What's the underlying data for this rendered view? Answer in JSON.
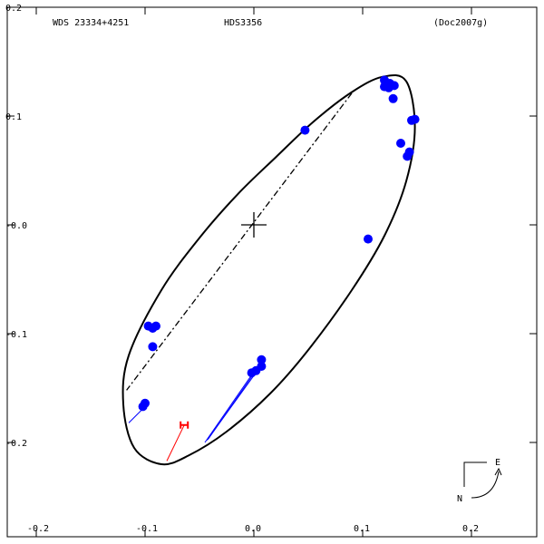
{
  "chart_data": {
    "type": "scatter",
    "header": {
      "left": "WDS 23334+4251",
      "center": "HDS3356",
      "right": "(Doc2007g)"
    },
    "xlim": [
      -0.2,
      0.2
    ],
    "ylim": [
      -0.2,
      0.2
    ],
    "x_ticks": [
      {
        "value": -0.2,
        "label": "-0.2"
      },
      {
        "value": -0.1,
        "label": "-0.1"
      },
      {
        "value": 0.0,
        "label": "0.0"
      },
      {
        "value": 0.1,
        "label": "0.1"
      },
      {
        "value": 0.2,
        "label": "0.2"
      }
    ],
    "y_ticks": [
      {
        "value": 0.2,
        "label": "0.2"
      },
      {
        "value": 0.1,
        "label": "0.1"
      },
      {
        "value": 0.0,
        "label": "-0.0"
      },
      {
        "value": -0.1,
        "label": "-0.1"
      },
      {
        "value": -0.2,
        "label": "-0.2"
      }
    ],
    "colors": {
      "orbit": "#000000",
      "observations": "#0000ff",
      "residuals": "#0000ff",
      "highlight": "#ff0000",
      "frame": "#000000"
    },
    "orbit_polygon": [
      [
        0.14,
        0.132
      ],
      [
        0.118,
        0.136
      ],
      [
        0.09,
        0.122
      ],
      [
        0.055,
        0.095
      ],
      [
        0.02,
        0.062
      ],
      [
        -0.015,
        0.028
      ],
      [
        -0.05,
        -0.012
      ],
      [
        -0.085,
        -0.06
      ],
      [
        -0.115,
        -0.12
      ],
      [
        -0.12,
        -0.165
      ],
      [
        -0.11,
        -0.205
      ],
      [
        -0.085,
        -0.22
      ],
      [
        -0.06,
        -0.212
      ],
      [
        -0.025,
        -0.19
      ],
      [
        0.015,
        -0.155
      ],
      [
        0.05,
        -0.115
      ],
      [
        0.09,
        -0.06
      ],
      [
        0.12,
        -0.01
      ],
      [
        0.14,
        0.04
      ],
      [
        0.148,
        0.09
      ]
    ],
    "line_of_nodes": [
      [
        0.09,
        0.121
      ],
      [
        -0.117,
        -0.152
      ]
    ],
    "primary_star": [
      0.0,
      0.0
    ],
    "observations": [
      {
        "x": 0.12,
        "y": 0.133
      },
      {
        "x": 0.125,
        "y": 0.13
      },
      {
        "x": 0.129,
        "y": 0.128
      },
      {
        "x": 0.12,
        "y": 0.127
      },
      {
        "x": 0.124,
        "y": 0.126
      },
      {
        "x": 0.128,
        "y": 0.116
      },
      {
        "x": 0.148,
        "y": 0.097
      },
      {
        "x": 0.145,
        "y": 0.096
      },
      {
        "x": 0.135,
        "y": 0.075
      },
      {
        "x": 0.143,
        "y": 0.067
      },
      {
        "x": 0.141,
        "y": 0.063
      },
      {
        "x": 0.047,
        "y": 0.087
      },
      {
        "x": 0.105,
        "y": -0.013
      },
      {
        "x": -0.093,
        "y": -0.095
      },
      {
        "x": -0.097,
        "y": -0.093
      },
      {
        "x": -0.09,
        "y": -0.093
      },
      {
        "x": -0.093,
        "y": -0.112
      },
      {
        "x": -0.1,
        "y": -0.164
      },
      {
        "x": -0.102,
        "y": -0.167
      },
      {
        "x": 0.007,
        "y": -0.124
      },
      {
        "x": 0.007,
        "y": -0.13
      },
      {
        "x": 0.002,
        "y": -0.134
      },
      {
        "x": -0.002,
        "y": -0.136
      }
    ],
    "residuals": [
      [
        [
          -0.101,
          -0.168
        ],
        [
          -0.115,
          -0.182
        ]
      ],
      [
        [
          0.0,
          -0.135
        ],
        [
          -0.045,
          -0.2
        ]
      ],
      [
        [
          0.004,
          -0.133
        ],
        [
          -0.043,
          -0.198
        ]
      ],
      [
        [
          0.006,
          -0.128
        ],
        [
          -0.042,
          -0.197
        ]
      ]
    ],
    "highlighted_point": {
      "x": -0.064,
      "y": -0.184,
      "orbit_x": -0.08,
      "orbit_y": -0.217
    },
    "compass": {
      "east_label": "E",
      "north_label": "N"
    }
  }
}
